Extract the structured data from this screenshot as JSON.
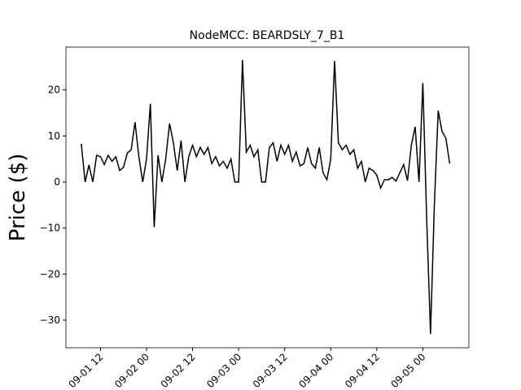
{
  "chart_data": {
    "type": "line",
    "title": "NodeMCC: BEARDSLY_7_B1",
    "y_label": "Price ($)",
    "x": [
      "09-01 07",
      "09-01 08",
      "09-01 09",
      "09-01 10",
      "09-01 11",
      "09-01 12",
      "09-01 13",
      "09-01 14",
      "09-01 15",
      "09-01 16",
      "09-01 17",
      "09-01 18",
      "09-01 19",
      "09-01 20",
      "09-01 21",
      "09-01 22",
      "09-01 23",
      "09-02 00",
      "09-02 01",
      "09-02 02",
      "09-02 03",
      "09-02 04",
      "09-02 05",
      "09-02 06",
      "09-02 07",
      "09-02 08",
      "09-02 09",
      "09-02 10",
      "09-02 11",
      "09-02 12",
      "09-02 13",
      "09-02 14",
      "09-02 15",
      "09-02 16",
      "09-02 17",
      "09-02 18",
      "09-02 19",
      "09-02 20",
      "09-02 21",
      "09-02 22",
      "09-02 23",
      "09-03 00",
      "09-03 01",
      "09-03 02",
      "09-03 03",
      "09-03 04",
      "09-03 05",
      "09-03 06",
      "09-03 07",
      "09-03 08",
      "09-03 09",
      "09-03 10",
      "09-03 11",
      "09-03 12",
      "09-03 13",
      "09-03 14",
      "09-03 15",
      "09-03 16",
      "09-03 17",
      "09-03 18",
      "09-03 19",
      "09-03 20",
      "09-03 21",
      "09-03 22",
      "09-03 23",
      "09-04 00",
      "09-04 01",
      "09-04 02",
      "09-04 03",
      "09-04 04",
      "09-04 05",
      "09-04 06",
      "09-04 07",
      "09-04 08",
      "09-04 09",
      "09-04 10",
      "09-04 11",
      "09-04 12",
      "09-04 13",
      "09-04 14",
      "09-04 15",
      "09-04 16",
      "09-04 17",
      "09-04 18",
      "09-04 19",
      "09-04 20",
      "09-04 21",
      "09-04 22",
      "09-04 23",
      "09-05 00",
      "09-05 01",
      "09-05 02",
      "09-05 03",
      "09-05 04",
      "09-05 05",
      "09-05 06",
      "09-05 07"
    ],
    "series": [
      {
        "color": "#000000",
        "values": [
          8.3,
          0,
          3.7,
          0,
          5.8,
          5.5,
          3.8,
          5.8,
          4.5,
          5.5,
          2.5,
          3.2,
          6.3,
          7.0,
          13.0,
          5.5,
          0,
          5.0,
          17.0,
          -9.8,
          5.8,
          0,
          5.0,
          12.7,
          8.5,
          2.5,
          9.0,
          0,
          5.5,
          8.0,
          5.5,
          7.5,
          6.0,
          7.5,
          4.0,
          5.5,
          3.5,
          4.5,
          3.0,
          5.0,
          0,
          0,
          26.5,
          6.5,
          8.0,
          5.5,
          7.0,
          0,
          0,
          7.5,
          8.5,
          4.5,
          8.0,
          6.0,
          8.0,
          4.5,
          6.5,
          3.5,
          4.0,
          7.5,
          4.0,
          3.0,
          7.5,
          2.0,
          0.5,
          5.0,
          26.3,
          8.5,
          7.0,
          8.0,
          6.0,
          7.0,
          3.0,
          4.5,
          0,
          3.0,
          2.5,
          1.5,
          -1.3,
          0.5,
          0.5,
          1.0,
          0.2,
          2.0,
          3.8,
          0.3,
          8.0,
          12.0,
          0,
          21.5,
          -8.0,
          -33.0,
          -5.0,
          15.5,
          11.0,
          9.5,
          4.0
        ]
      }
    ],
    "xlim": [
      "09-01 03",
      "09-05 12"
    ],
    "xticks": [
      "09-01 12",
      "09-02 00",
      "09-02 12",
      "09-03 00",
      "09-03 12",
      "09-04 00",
      "09-04 12",
      "09-05 00"
    ],
    "ylim": [
      -36,
      29.3
    ],
    "yticks": [
      {
        "value": -30,
        "label": "−30"
      },
      {
        "value": -20,
        "label": "−20"
      },
      {
        "value": -10,
        "label": "−10"
      },
      0,
      10,
      20
    ]
  }
}
